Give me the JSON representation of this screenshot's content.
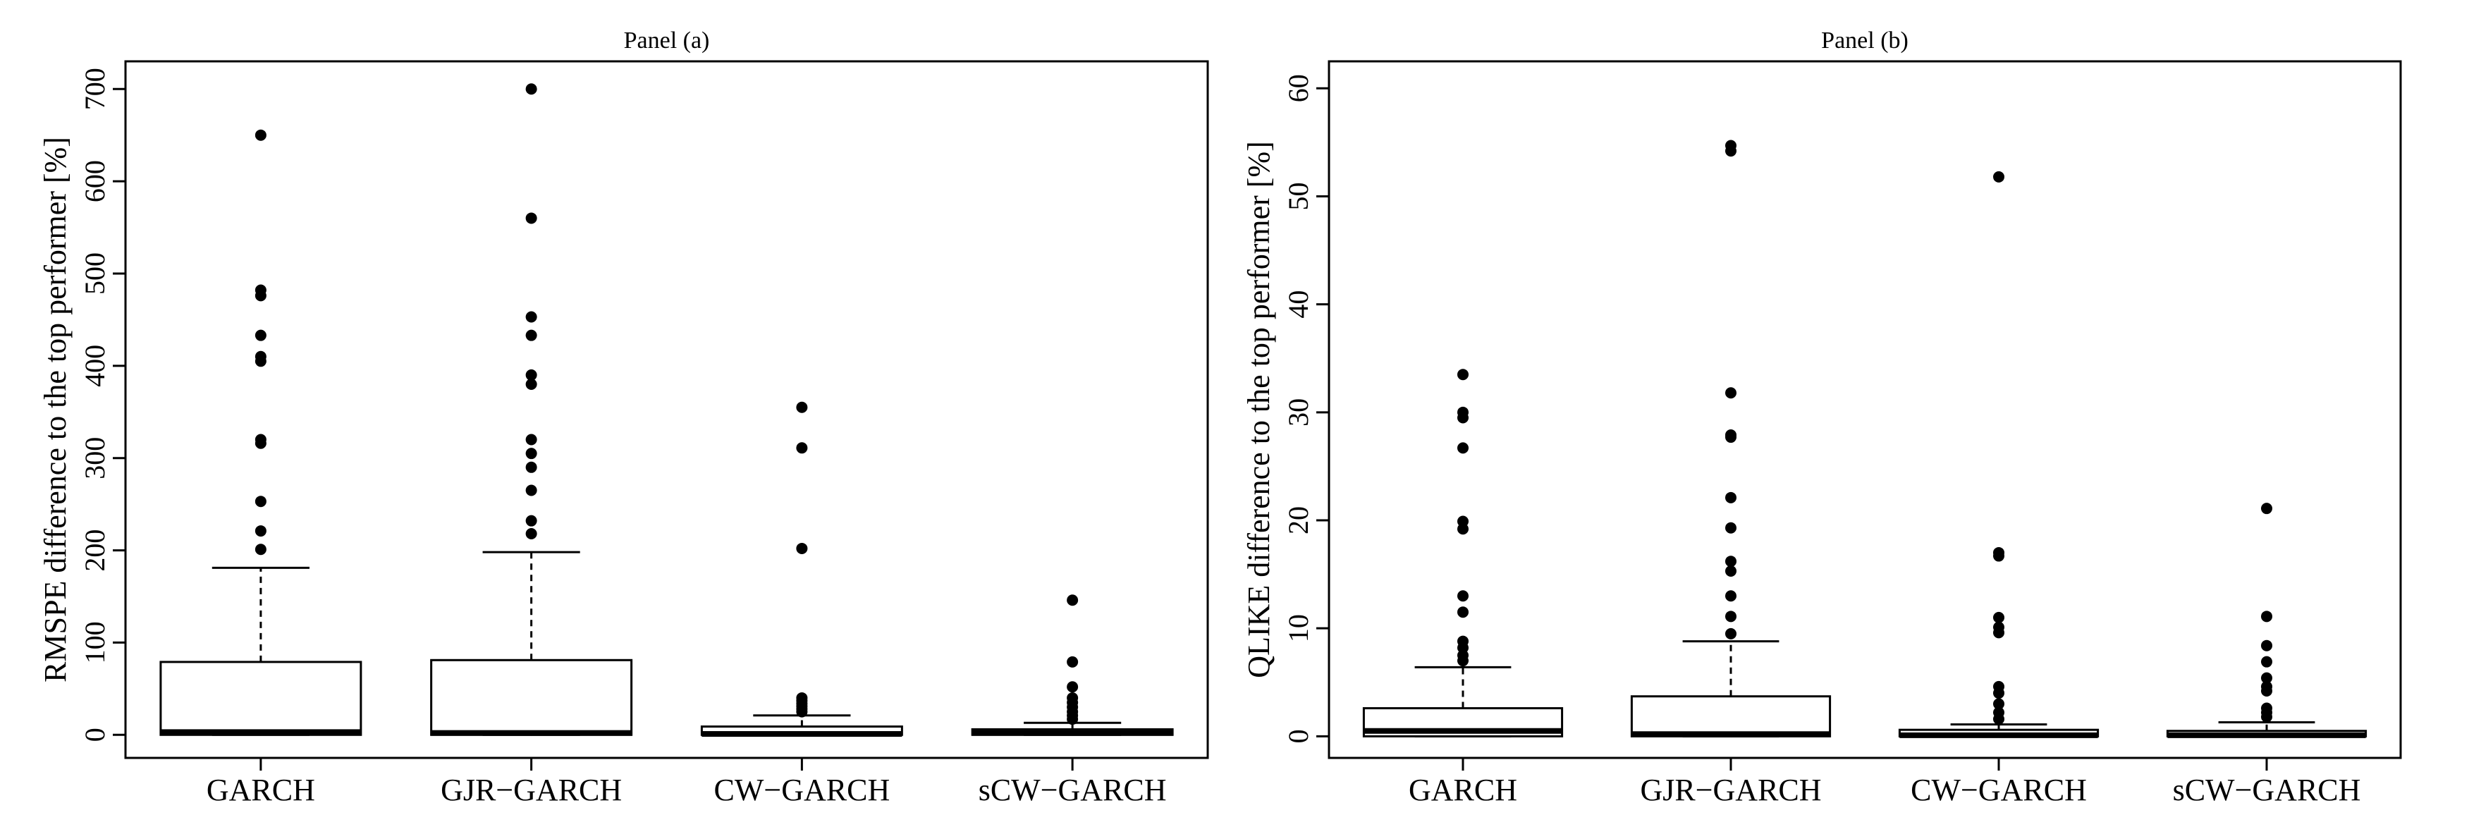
{
  "chart_data": [
    {
      "type": "boxplot",
      "title": "Panel (a)",
      "ylabel": "RMSPE difference to the top performer [%]",
      "xlabel": "",
      "ylim": [
        -25,
        730
      ],
      "yticks": [
        0,
        100,
        200,
        300,
        400,
        500,
        600,
        700
      ],
      "categories": [
        "GARCH",
        "GJR−GARCH",
        "CW−GARCH",
        "sCW−GARCH"
      ],
      "boxes": [
        {
          "q1": 0,
          "median": 3,
          "q3": 79,
          "whisker_low": 0,
          "whisker_high": 181,
          "outliers": [
            201,
            221,
            253,
            316,
            320,
            405,
            410,
            433,
            476,
            482,
            650
          ]
        },
        {
          "q1": 0,
          "median": 2,
          "q3": 81,
          "whisker_low": 0,
          "whisker_high": 198,
          "outliers": [
            218,
            232,
            265,
            290,
            305,
            320,
            380,
            390,
            433,
            453,
            560,
            700
          ]
        },
        {
          "q1": 0,
          "median": 1,
          "q3": 9,
          "whisker_low": 0,
          "whisker_high": 21,
          "outliers": [
            25,
            28,
            31,
            34,
            37,
            40,
            202,
            311,
            355
          ]
        },
        {
          "q1": 0,
          "median": 2,
          "q3": 6,
          "whisker_low": 0,
          "whisker_high": 13,
          "outliers": [
            17,
            21,
            25,
            30,
            35,
            40,
            52,
            79,
            146
          ]
        }
      ],
      "grid": false,
      "legend": "none"
    },
    {
      "type": "boxplot",
      "title": "Panel (b)",
      "ylabel": "QLIKE difference to the top performer [%]",
      "xlabel": "",
      "ylim": [
        -2,
        62.5
      ],
      "yticks": [
        0,
        10,
        20,
        30,
        40,
        50,
        60
      ],
      "categories": [
        "GARCH",
        "GJR−GARCH",
        "CW−GARCH",
        "sCW−GARCH"
      ],
      "boxes": [
        {
          "q1": 0,
          "median": 0.5,
          "q3": 2.6,
          "whisker_low": 0,
          "whisker_high": 6.4,
          "outliers": [
            7.0,
            7.5,
            8.2,
            8.8,
            11.5,
            13.0,
            19.2,
            19.9,
            26.7,
            29.5,
            30.0,
            33.5
          ]
        },
        {
          "q1": 0,
          "median": 0.2,
          "q3": 3.7,
          "whisker_low": 0,
          "whisker_high": 8.8,
          "outliers": [
            9.5,
            11.1,
            13.0,
            15.3,
            16.2,
            19.3,
            22.1,
            27.7,
            27.9,
            31.8,
            54.2,
            54.7
          ]
        },
        {
          "q1": 0,
          "median": 0.1,
          "q3": 0.6,
          "whisker_low": 0,
          "whisker_high": 1.1,
          "outliers": [
            1.6,
            2.2,
            3.0,
            4.0,
            4.6,
            9.6,
            10.1,
            11.0,
            16.7,
            17.0,
            51.8
          ]
        },
        {
          "q1": 0,
          "median": 0.1,
          "q3": 0.5,
          "whisker_low": 0,
          "whisker_high": 1.3,
          "outliers": [
            1.8,
            2.2,
            2.6,
            4.2,
            4.6,
            5.4,
            6.9,
            8.4,
            11.1,
            21.1
          ]
        }
      ],
      "grid": false,
      "legend": "none"
    }
  ]
}
